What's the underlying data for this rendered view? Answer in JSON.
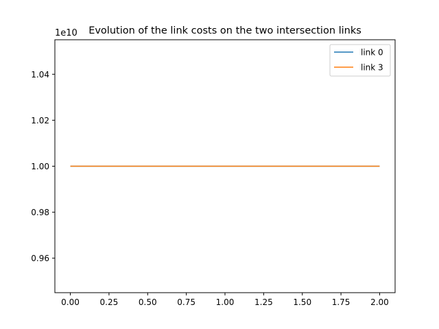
{
  "chart_data": {
    "type": "line",
    "title": "Evolution of the link costs on the two intersection links",
    "xlabel": "",
    "ylabel": "",
    "offset_label": "1e10",
    "xlim": [
      -0.1,
      2.1
    ],
    "ylim": [
      0.945,
      1.055
    ],
    "xticks": [
      0.0,
      0.25,
      0.5,
      0.75,
      1.0,
      1.25,
      1.5,
      1.75,
      2.0
    ],
    "xtick_labels": [
      "0.00",
      "0.25",
      "0.50",
      "0.75",
      "1.00",
      "1.25",
      "1.50",
      "1.75",
      "2.00"
    ],
    "yticks": [
      0.96,
      0.98,
      1.0,
      1.02,
      1.04
    ],
    "ytick_labels": [
      "0.96",
      "0.98",
      "1.00",
      "1.02",
      "1.04"
    ],
    "grid": false,
    "legend_position": "upper right",
    "series": [
      {
        "name": "link 0",
        "color": "#1f77b4",
        "x": [
          0,
          1,
          2
        ],
        "y": [
          1.0,
          1.0,
          1.0
        ]
      },
      {
        "name": "link 3",
        "color": "#ff7f0e",
        "x": [
          0,
          1,
          2
        ],
        "y": [
          1.0,
          1.0,
          1.0
        ]
      }
    ]
  }
}
